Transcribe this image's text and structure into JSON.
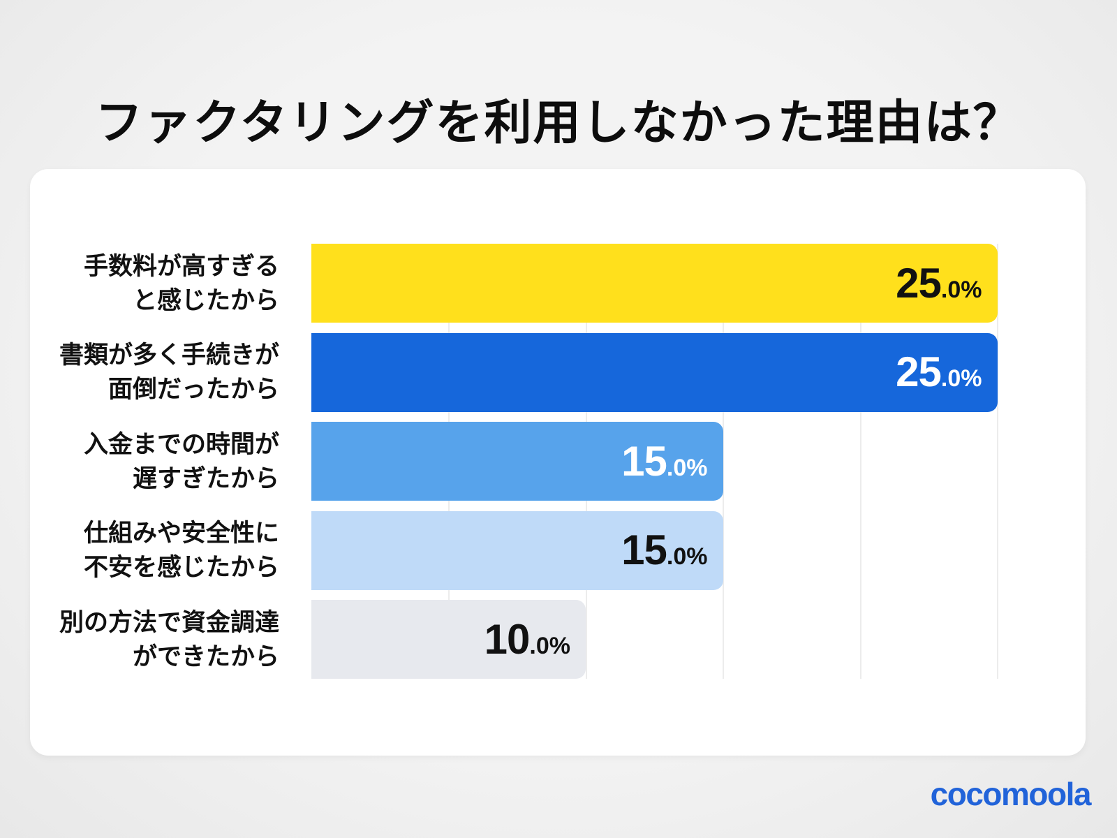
{
  "page": {
    "title": "ファクタリングを利用しなかった理由は？",
    "brand": "cocomoola"
  },
  "colors": {
    "background": "#f0f0f0",
    "card": "#ffffff",
    "title_text": "#0d0d0d",
    "label_text": "#111111",
    "gridline": "#ececec",
    "brand_blue": "#2163d9",
    "bar_yellow": "#ffe01c",
    "bar_dark_blue": "#1667db",
    "bar_medium_blue": "#57a3eb",
    "bar_light_blue": "#bfdaf8",
    "bar_gray": "#e7e9ee"
  },
  "chart_data": {
    "type": "bar",
    "orientation": "horizontal",
    "title": "ファクタリングを利用しなかった理由は？",
    "unit": "%",
    "xlim": [
      0,
      26
    ],
    "gridline_interval": 5,
    "grid": true,
    "legend": false,
    "categories": [
      "手数料が高すぎると感じたから",
      "書類が多く手続きが面倒だったから",
      "入金までの時間が遅すぎたから",
      "仕組みや安全性に不安を感じたから",
      "別の方法で資金調達ができたから"
    ],
    "values": [
      25.0,
      25.0,
      15.0,
      15.0,
      10.0
    ],
    "value_labels": [
      "25.0%",
      "25.0%",
      "15.0%",
      "15.0%",
      "10.0%"
    ],
    "bars": [
      {
        "label_line1": "手数料が高すぎる",
        "label_line2": "と感じたから",
        "value": 25.0,
        "value_int": "25",
        "value_frac": ".0%",
        "color": "#ffe01c",
        "value_text_color": "#111111"
      },
      {
        "label_line1": "書類が多く手続きが",
        "label_line2": "面倒だったから",
        "value": 25.0,
        "value_int": "25",
        "value_frac": ".0%",
        "color": "#1667db",
        "value_text_color": "#ffffff"
      },
      {
        "label_line1": "入金までの時間が",
        "label_line2": "遅すぎたから",
        "value": 15.0,
        "value_int": "15",
        "value_frac": ".0%",
        "color": "#57a3eb",
        "value_text_color": "#ffffff"
      },
      {
        "label_line1": "仕組みや安全性に",
        "label_line2": "不安を感じたから",
        "value": 15.0,
        "value_int": "15",
        "value_frac": ".0%",
        "color": "#bfdaf8",
        "value_text_color": "#111111"
      },
      {
        "label_line1": "別の方法で資金調達",
        "label_line2": "ができたから",
        "value": 10.0,
        "value_int": "10",
        "value_frac": ".0%",
        "color": "#e7e9ee",
        "value_text_color": "#111111"
      }
    ]
  }
}
